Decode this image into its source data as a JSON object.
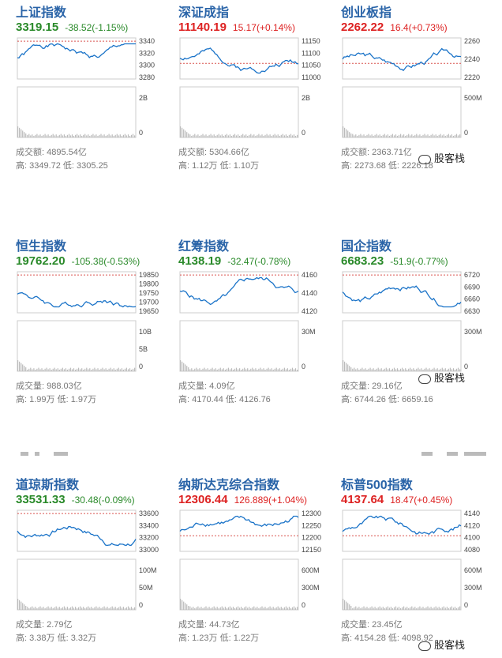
{
  "cards": [
    {
      "title": "上证指数",
      "last": "3319.15",
      "change": "-38.52(-1.15%)",
      "direction": "down",
      "price_ticks": [
        "3340",
        "3320",
        "3300",
        "3280"
      ],
      "vol_ticks": [
        "2B",
        "0"
      ],
      "foot1": "成交额: 4895.54亿",
      "foot2": "高: 3349.72   低: 3305.25"
    },
    {
      "title": "深证成指",
      "last": "11140.19",
      "change": "15.17(+0.14%)",
      "direction": "up",
      "price_ticks": [
        "11150",
        "11100",
        "11050",
        "11000"
      ],
      "vol_ticks": [
        "2B",
        "0"
      ],
      "foot1": "成交额: 5304.66亿",
      "foot2": "高: 1.12万   低: 1.10万"
    },
    {
      "title": "创业板指",
      "last": "2262.22",
      "change": "16.4(+0.73%)",
      "direction": "up",
      "price_ticks": [
        "2260",
        "2240",
        "2220"
      ],
      "vol_ticks": [
        "500M",
        "0"
      ],
      "foot1": "成交额: 2363.71亿",
      "foot2": "高: 2273.68   低: 2226.18"
    },
    {
      "title": "恒生指数",
      "last": "19762.20",
      "change": "-105.38(-0.53%)",
      "direction": "down",
      "price_ticks": [
        "19850",
        "19800",
        "19750",
        "19700",
        "19650"
      ],
      "vol_ticks": [
        "10B",
        "5B",
        "0"
      ],
      "foot1": "成交量: 988.03亿",
      "foot2": "高: 1.99万   低: 1.97万"
    },
    {
      "title": "红筹指数",
      "last": "4138.19",
      "change": "-32.47(-0.78%)",
      "direction": "down",
      "price_ticks": [
        "4160",
        "4140",
        "4120"
      ],
      "vol_ticks": [
        "30M",
        "0"
      ],
      "foot1": "成交量: 4.09亿",
      "foot2": "高: 4170.44   低: 4126.76"
    },
    {
      "title": "国企指数",
      "last": "6683.23",
      "change": "-51.9(-0.77%)",
      "direction": "down",
      "price_ticks": [
        "6720",
        "6690",
        "6660",
        "6630"
      ],
      "vol_ticks": [
        "300M",
        "0"
      ],
      "foot1": "成交量: 29.16亿",
      "foot2": "高: 6744.26   低: 6659.16"
    },
    {
      "title": "道琼斯指数",
      "last": "33531.33",
      "change": "-30.48(-0.09%)",
      "direction": "down",
      "price_ticks": [
        "33600",
        "33400",
        "33200",
        "33000"
      ],
      "vol_ticks": [
        "100M",
        "50M",
        "0"
      ],
      "foot1": "成交量: 2.79亿",
      "foot2": "高: 3.38万   低: 3.32万"
    },
    {
      "title": "纳斯达克综合指数",
      "last": "12306.44",
      "change": "126.889(+1.04%)",
      "direction": "up",
      "price_ticks": [
        "12300",
        "12250",
        "12200",
        "12150"
      ],
      "vol_ticks": [
        "600M",
        "300M",
        "0"
      ],
      "foot1": "成交量: 44.73亿",
      "foot2": "高: 1.23万   低: 1.22万"
    },
    {
      "title": "标普500指数",
      "last": "4137.64",
      "change": "18.47(+0.45%)",
      "direction": "up",
      "price_ticks": [
        "4140",
        "4120",
        "4100",
        "4080"
      ],
      "vol_ticks": [
        "600M",
        "300M",
        "0"
      ],
      "foot1": "成交量: 23.45亿",
      "foot2": "高: 4154.28   低: 4098.92"
    }
  ],
  "watermark": "股客栈",
  "colors": {
    "line": "#1a73c8",
    "up": "#dd2222",
    "down": "#2a8a2a",
    "title": "#2a64a8",
    "ref": "#d9534f"
  }
}
